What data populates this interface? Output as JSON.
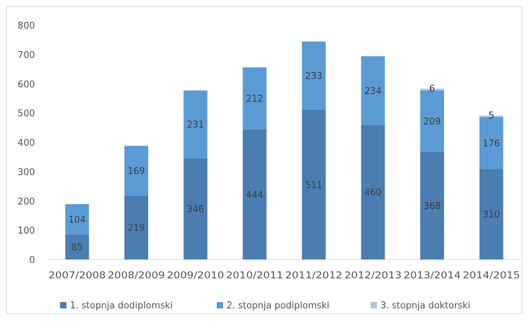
{
  "chart_data": {
    "type": "bar",
    "stacked": true,
    "categories": [
      "2007/2008",
      "2008/2009",
      "2009/2010",
      "2010/2011",
      "2011/2012",
      "2012/2013",
      "2013/2014",
      "2014/2015"
    ],
    "series": [
      {
        "name": "1. stopnja dodiplomski",
        "values": [
          85,
          219,
          346,
          444,
          511,
          460,
          368,
          310
        ],
        "labels": [
          "85",
          "219",
          "346",
          "444",
          "511",
          "460",
          "368",
          "310"
        ],
        "color": "#4a7eb0",
        "label_color": "#404040"
      },
      {
        "name": "2. stopnja podiplomski",
        "values": [
          104,
          169,
          231,
          212,
          233,
          234,
          209,
          176
        ],
        "labels": [
          "104",
          "169",
          "231",
          "212",
          "233",
          "234",
          "209",
          "176"
        ],
        "color": "#5b9bd5",
        "label_color": "#404040"
      },
      {
        "name": "3. stopnja doktorski",
        "values": [
          0,
          0,
          0,
          0,
          0,
          0,
          6,
          5
        ],
        "labels": [
          "",
          "",
          "",
          "",
          "",
          "",
          "6",
          "5"
        ],
        "color": "#a9c6e6",
        "label_color": "#404040"
      }
    ],
    "y_ticks": [
      "0",
      "100",
      "200",
      "300",
      "400",
      "500",
      "600",
      "700",
      "800"
    ],
    "ylim": [
      0,
      800
    ],
    "grid": false,
    "legend_position": "bottom"
  }
}
